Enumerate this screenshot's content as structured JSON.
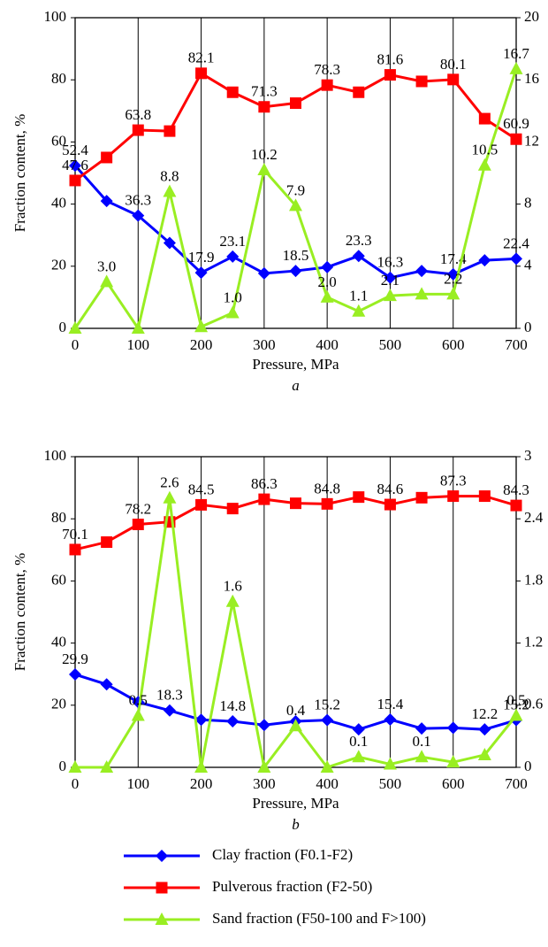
{
  "chart_data": [
    {
      "type": "line",
      "caption": "a",
      "xlabel": "Pressure, MPa",
      "ylabel": "Fraction content, %",
      "x": [
        0,
        50,
        100,
        150,
        200,
        250,
        300,
        350,
        400,
        450,
        500,
        550,
        600,
        650,
        700
      ],
      "xlim": [
        0,
        700
      ],
      "xticks": [
        0,
        100,
        200,
        300,
        400,
        500,
        600,
        700
      ],
      "ylim": [
        0,
        100
      ],
      "yticks": [
        0,
        20,
        40,
        60,
        80,
        100
      ],
      "y2lim": [
        0,
        20
      ],
      "y2ticks": [
        0,
        4,
        8,
        12,
        16,
        20
      ],
      "grid": "x",
      "series": [
        {
          "name": "Clay fraction (F0.1-F2)",
          "color": "#0000ff",
          "marker": "diamond",
          "values": [
            52.4,
            41,
            36.3,
            27.5,
            17.9,
            23.1,
            17.7,
            18.5,
            19.7,
            23.3,
            16.3,
            18.5,
            17.4,
            21.9,
            22.4
          ],
          "value_labels": [
            "52.4",
            null,
            "36.3",
            null,
            "17.9",
            "23.1",
            null,
            "18.5",
            null,
            "23.3",
            "16.3",
            null,
            "17.4",
            null,
            "22.4"
          ]
        },
        {
          "name": "Pulverous fraction (F2-50)",
          "color": "#ff0000",
          "marker": "square",
          "values": [
            47.6,
            55,
            63.8,
            63.5,
            82.1,
            76,
            71.3,
            72.5,
            78.3,
            76,
            81.6,
            79.5,
            80.1,
            67.5,
            60.9
          ],
          "value_labels": [
            "47.6",
            null,
            "63.8",
            null,
            "82.1",
            null,
            "71.3",
            null,
            "78.3",
            null,
            "81.6",
            null,
            "80.1",
            null,
            "60.9"
          ]
        },
        {
          "name": "Sand fraction (F50-100 and F>100)",
          "color": "#99ee22",
          "marker": "triangle",
          "axis": "y2",
          "values": [
            0,
            3.0,
            0,
            8.8,
            0.1,
            1.0,
            10.2,
            7.9,
            2.0,
            1.1,
            2.1,
            2.2,
            2.2,
            10.5,
            16.7
          ],
          "value_labels": [
            null,
            "3.0",
            null,
            "8.8",
            null,
            "1.0",
            "10.2",
            "7.9",
            "2.0",
            "1.1",
            "2.1",
            null,
            "2.2",
            "10.5",
            "16.7"
          ]
        }
      ]
    },
    {
      "type": "line",
      "caption": "b",
      "xlabel": "Pressure, MPa",
      "ylabel": "Fraction content, %",
      "x": [
        0,
        50,
        100,
        150,
        200,
        250,
        300,
        350,
        400,
        450,
        500,
        550,
        600,
        650,
        700
      ],
      "xlim": [
        0,
        700
      ],
      "xticks": [
        0,
        100,
        200,
        300,
        400,
        500,
        600,
        700
      ],
      "ylim": [
        0,
        100
      ],
      "yticks": [
        0,
        20,
        40,
        60,
        80,
        100
      ],
      "y2lim": [
        0,
        3
      ],
      "y2ticks": [
        0,
        0.6,
        1.2,
        1.8,
        2.4,
        3
      ],
      "grid": "x",
      "series": [
        {
          "color": "#0000ff",
          "marker": "diamond",
          "values": [
            29.9,
            26.7,
            21,
            18.3,
            15.3,
            14.8,
            13.6,
            14.8,
            15.2,
            12.2,
            15.4,
            12.5,
            12.7,
            12.2,
            15.2
          ],
          "value_labels": [
            "29.9",
            null,
            null,
            "18.3",
            null,
            "14.8",
            null,
            null,
            "15.2",
            null,
            "15.4",
            null,
            null,
            "12.2",
            "15.2"
          ]
        },
        {
          "color": "#ff0000",
          "marker": "square",
          "values": [
            70.1,
            72.5,
            78.2,
            79,
            84.5,
            83.3,
            86.3,
            85,
            84.8,
            87,
            84.6,
            86.8,
            87.3,
            87.3,
            84.3
          ],
          "value_labels": [
            "70.1",
            null,
            "78.2",
            null,
            "84.5",
            null,
            "86.3",
            null,
            "84.8",
            null,
            "84.6",
            null,
            "87.3",
            null,
            "84.3"
          ]
        },
        {
          "color": "#99ee22",
          "marker": "triangle",
          "axis": "y2",
          "values": [
            0,
            0,
            0.5,
            2.6,
            0,
            1.6,
            0,
            0.4,
            0,
            0.1,
            0.03,
            0.1,
            0.05,
            0.12,
            0.5
          ],
          "value_labels": [
            null,
            null,
            "0.5",
            "2.6",
            null,
            "1.6",
            null,
            "0.4",
            null,
            "0.1",
            null,
            "0.1",
            null,
            null,
            "0.5"
          ]
        }
      ]
    }
  ]
}
